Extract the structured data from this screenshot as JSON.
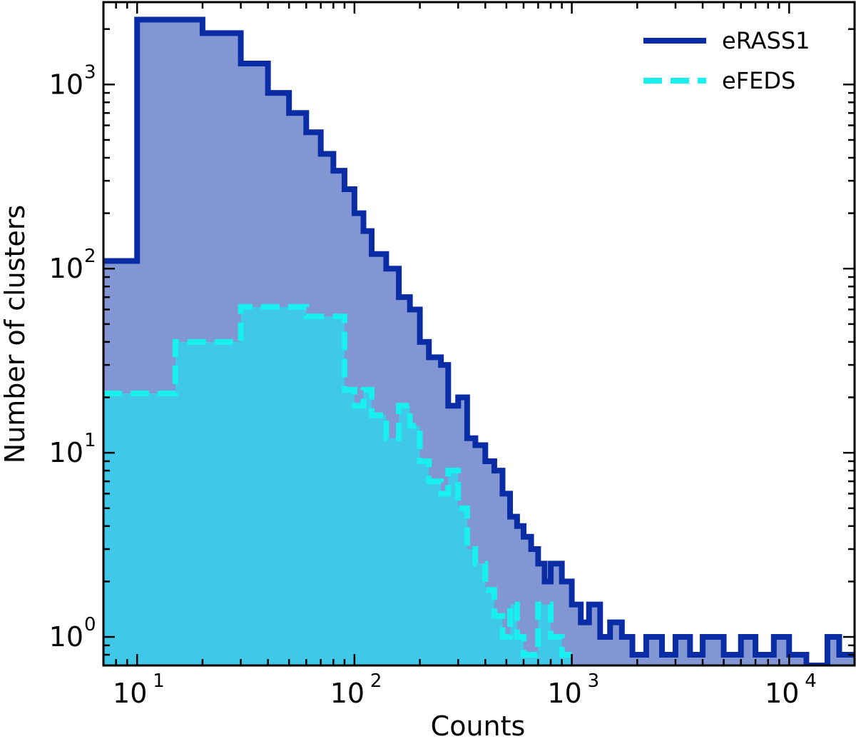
{
  "chart_data": {
    "type": "step-histogram",
    "title": "",
    "xlabel": "Counts",
    "ylabel": "Number of clusters",
    "xscale": "log",
    "yscale": "log",
    "xlim": [
      7,
      20000
    ],
    "ylim": [
      0.7,
      2800
    ],
    "x_ticks": [
      {
        "base": "10",
        "exp": "1",
        "value": 10
      },
      {
        "base": "10",
        "exp": "2",
        "value": 100
      },
      {
        "base": "10",
        "exp": "3",
        "value": 1000
      },
      {
        "base": "10",
        "exp": "4",
        "value": 10000
      }
    ],
    "y_ticks": [
      {
        "base": "10",
        "exp": "0",
        "value": 1
      },
      {
        "base": "10",
        "exp": "1",
        "value": 10
      },
      {
        "base": "10",
        "exp": "2",
        "value": 100
      },
      {
        "base": "10",
        "exp": "3",
        "value": 1000
      }
    ],
    "legend_position": "top-right",
    "series": [
      {
        "name": "eRASS1",
        "line_color": "#0a2da6",
        "fill_color": "#8196d2",
        "line_style": "solid",
        "edges": [
          7,
          10,
          20,
          30,
          40,
          50,
          60,
          70,
          80,
          90,
          100,
          110,
          120,
          140,
          160,
          180,
          200,
          220,
          250,
          270,
          300,
          330,
          360,
          400,
          440,
          480,
          520,
          560,
          600,
          650,
          700,
          750,
          800,
          900,
          1000,
          1100,
          1200,
          1350,
          1500,
          1700,
          1900,
          2200,
          2600,
          3000,
          3500,
          4000,
          5000,
          6000,
          7000,
          8500,
          10000,
          12000,
          15000,
          17000,
          20000
        ],
        "counts": [
          110,
          2250,
          1900,
          1300,
          900,
          700,
          550,
          420,
          340,
          270,
          200,
          160,
          120,
          100,
          70,
          60,
          40,
          33,
          30,
          18,
          20,
          12,
          11,
          9,
          8,
          6,
          4.5,
          4,
          3.5,
          3,
          2.5,
          2,
          2.5,
          2,
          1.5,
          1.2,
          1.5,
          1,
          1.2,
          1,
          0.8,
          1,
          0.8,
          1,
          0.8,
          1,
          0.8,
          1,
          0.8,
          1,
          0.8,
          0.7,
          1,
          0.8
        ]
      },
      {
        "name": "eFEDS",
        "line_color": "#18f0f0",
        "fill_color": "#40c8e8",
        "line_style": "dashed",
        "edges": [
          7,
          15,
          30,
          60,
          90,
          100,
          110,
          120,
          140,
          160,
          180,
          200,
          220,
          250,
          270,
          300,
          330,
          360,
          400,
          440,
          480,
          520,
          560,
          600,
          700,
          800,
          900,
          1000
        ],
        "counts": [
          21,
          40,
          62,
          55,
          22,
          18,
          22,
          16,
          12,
          18,
          14,
          9,
          7,
          6,
          8,
          5,
          3,
          2.5,
          1.8,
          1.3,
          1,
          1.5,
          1,
          0.8,
          1.5,
          1,
          0.8
        ]
      }
    ]
  }
}
